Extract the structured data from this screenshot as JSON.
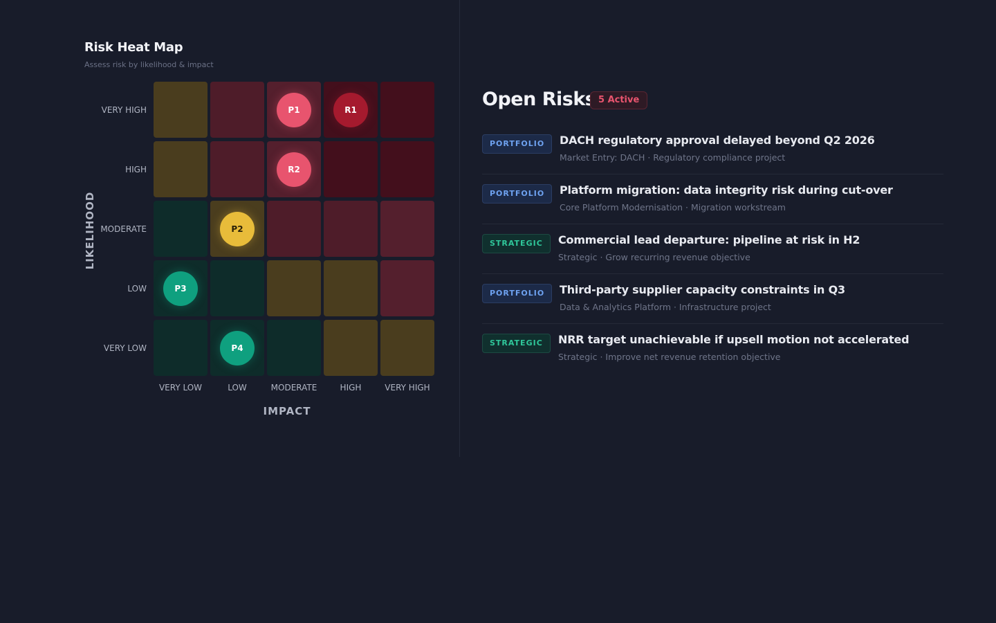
{
  "heatmap": {
    "title": "Risk Heat Map",
    "subtitle": "Assess risk by likelihood & impact",
    "y_axis_label": "LIKELIHOOD",
    "x_axis_label": "IMPACT",
    "likelihood_levels": [
      "VERY HIGH",
      "HIGH",
      "MODERATE",
      "LOW",
      "VERY LOW"
    ],
    "impact_levels": [
      "VERY LOW",
      "LOW",
      "MODERATE",
      "HIGH",
      "VERY HIGH"
    ],
    "cell_levels": [
      [
        "y",
        "r",
        "rl",
        "rd",
        "rd"
      ],
      [
        "y",
        "r",
        "rl",
        "rd",
        "rd"
      ],
      [
        "g",
        "y",
        "r",
        "r",
        "rl"
      ],
      [
        "g",
        "g",
        "y",
        "y",
        "rl"
      ],
      [
        "g",
        "g",
        "g",
        "y",
        "y"
      ]
    ],
    "markers": [
      {
        "label": "P1",
        "likelihood": "VERY HIGH",
        "impact": "MODERATE",
        "color": "#e8546e",
        "text_color": "#ffffff"
      },
      {
        "label": "R1",
        "likelihood": "VERY HIGH",
        "impact": "HIGH",
        "color": "#a51a2e",
        "text_color": "#ffffff"
      },
      {
        "label": "R2",
        "likelihood": "HIGH",
        "impact": "MODERATE",
        "color": "#e8546e",
        "text_color": "#ffffff"
      },
      {
        "label": "P2",
        "likelihood": "MODERATE",
        "impact": "LOW",
        "color": "#e8bc3a",
        "text_color": "#2a2108"
      },
      {
        "label": "P3",
        "likelihood": "LOW",
        "impact": "VERY LOW",
        "color": "#0fa07f",
        "text_color": "#ffffff"
      },
      {
        "label": "P4",
        "likelihood": "VERY LOW",
        "impact": "LOW",
        "color": "#0fa07f",
        "text_color": "#ffffff"
      }
    ]
  },
  "open_risks": {
    "title": "Open Risks",
    "badge": "5 Active",
    "items": [
      {
        "tag": "PORTFOLIO",
        "type": "portfolio",
        "title": "DACH regulatory approval delayed beyond Q2 2026",
        "subtitle": "Market Entry: DACH · Regulatory compliance project"
      },
      {
        "tag": "PORTFOLIO",
        "type": "portfolio",
        "title": "Platform migration: data integrity risk during cut-over",
        "subtitle": "Core Platform Modernisation · Migration workstream"
      },
      {
        "tag": "STRATEGIC",
        "type": "strategic",
        "title": "Commercial lead departure: pipeline at risk in H2",
        "subtitle": "Strategic · Grow recurring revenue objective"
      },
      {
        "tag": "PORTFOLIO",
        "type": "portfolio",
        "title": "Third-party supplier capacity constraints in Q3",
        "subtitle": "Data & Analytics Platform · Infrastructure project"
      },
      {
        "tag": "STRATEGIC",
        "type": "strategic",
        "title": "NRR target unachievable if upsell motion not accelerated",
        "subtitle": "Strategic · Improve net revenue retention objective"
      }
    ]
  }
}
